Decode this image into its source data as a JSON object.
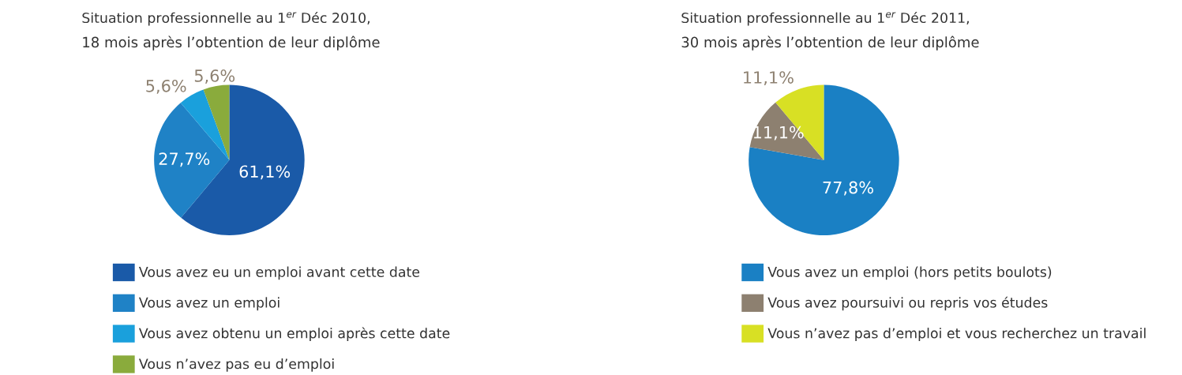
{
  "chart_data": [
    {
      "type": "pie",
      "title": "Situation professionnelle au 1$^{er}$ Déc 2010,",
      "subtitle": "18 mois après l’obtention de leur diplôme",
      "categories": [
        "Vous avez eu un emploi avant cette date",
        "Vous avez un emploi",
        "Vous avez obtenu un emploi après cette date",
        "Vous n’avez pas eu d’emploi"
      ],
      "values": [
        61.1,
        27.7,
        5.6,
        5.6
      ],
      "colors": [
        "#1a5aa8",
        "#1f82c6",
        "#1aa0dc",
        "#8aab3c"
      ],
      "value_labels": [
        "61,1%",
        "27,7%",
        "5,6%",
        "5,6%"
      ],
      "legend": "bottom"
    },
    {
      "type": "pie",
      "title": "Situation professionnelle au 1$^{er}$ Déc 2011,",
      "subtitle": "30 mois après l’obtention de leur diplôme",
      "categories": [
        "Vous avez un emploi (hors petits boulots)",
        "Vous avez poursuivi ou repris vos études",
        "Vous n’avez pas d’emploi et vous recherchez un travail"
      ],
      "values": [
        77.8,
        11.1,
        11.1
      ],
      "colors": [
        "#1a80c4",
        "#8d8070",
        "#d8e024"
      ],
      "value_labels": [
        "77,8%",
        "11,1%",
        "11,1%"
      ],
      "legend": "bottom"
    }
  ]
}
